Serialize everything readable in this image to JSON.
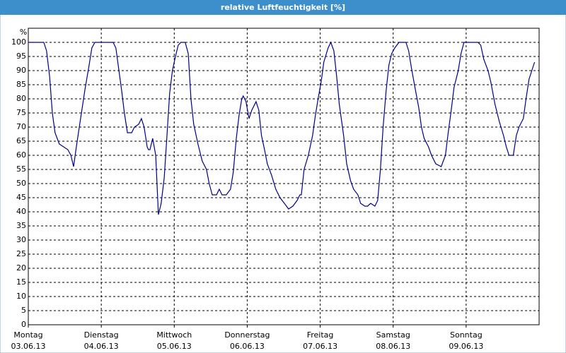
{
  "chart_data": {
    "type": "line",
    "title": "relative Luftfeuchtigkeit [%]",
    "y_unit": "%",
    "xlim": [
      0,
      168
    ],
    "ylim": [
      0,
      105
    ],
    "xticks": [
      {
        "value": 0,
        "label": "Montag"
      },
      {
        "value": 24,
        "label": "Dienstag"
      },
      {
        "value": 48,
        "label": "Mittwoch"
      },
      {
        "value": 72,
        "label": "Donnerstag"
      },
      {
        "value": 96,
        "label": "Freitag"
      },
      {
        "value": 120,
        "label": "Samstag"
      },
      {
        "value": 144,
        "label": "Sonntag"
      }
    ],
    "xtick_dates": [
      "03.06.13",
      "04.06.13",
      "05.06.13",
      "06.06.13",
      "07.06.13",
      "08.06.13",
      "09.06.13"
    ],
    "yticks": [
      0,
      5,
      10,
      15,
      20,
      25,
      30,
      35,
      40,
      45,
      50,
      55,
      60,
      65,
      70,
      75,
      80,
      85,
      90,
      95,
      100
    ],
    "grid": true,
    "series": [
      {
        "color": "#00008b",
        "x": [
          0,
          5.1,
          6.0,
          7.0,
          7.9,
          8.8,
          10.2,
          11.6,
          13.0,
          14.0,
          14.9,
          15.8,
          17.2,
          18.6,
          20.0,
          20.9,
          21.9,
          24.0,
          27.9,
          28.8,
          29.8,
          30.7,
          31.6,
          32.6,
          34.0,
          34.9,
          36.3,
          37.2,
          38.1,
          39.1,
          39.5,
          40.0,
          40.9,
          41.9,
          42.8,
          43.7,
          44.7,
          45.6,
          46.5,
          47.4,
          48.4,
          49.3,
          50.2,
          51.6,
          52.6,
          53.5,
          54.4,
          55.8,
          57.2,
          58.6,
          59.5,
          60.5,
          61.9,
          62.8,
          63.7,
          65.1,
          66.5,
          67.4,
          68.4,
          69.3,
          70.2,
          70.7,
          71.6,
          72.6,
          73.5,
          74.9,
          75.8,
          76.7,
          77.7,
          78.6,
          80.0,
          81.4,
          82.8,
          84.2,
          85.6,
          87.0,
          88.4,
          89.3,
          89.8,
          90.7,
          92.1,
          93.5,
          94.4,
          95.3,
          96.3,
          97.2,
          98.6,
          99.5,
          100.5,
          101.4,
          102.3,
          103.7,
          104.7,
          106.0,
          107.0,
          108.4,
          109.3,
          110.7,
          111.6,
          112.6,
          114.0,
          114.9,
          115.8,
          116.7,
          117.7,
          118.6,
          119.5,
          120.5,
          121.9,
          124.2,
          125.1,
          126.0,
          127.0,
          128.4,
          129.3,
          130.2,
          131.6,
          132.6,
          134.0,
          135.8,
          137.2,
          138.1,
          139.1,
          140.0,
          141.4,
          142.3,
          143.3,
          147.9,
          148.8,
          149.8,
          151.2,
          152.1,
          153.5,
          154.9,
          156.3,
          157.2,
          158.1,
          159.5,
          160.5,
          161.4,
          162.8,
          163.7,
          164.7,
          165.6,
          166.5
        ],
        "values": [
          100,
          100,
          97,
          88,
          75,
          68,
          64,
          63,
          62,
          60,
          56,
          63,
          73,
          83,
          92,
          98,
          100,
          100,
          100,
          98,
          90,
          83,
          75,
          68,
          68,
          70,
          71,
          73,
          70,
          63,
          62,
          62,
          66,
          60,
          39,
          43,
          52,
          67,
          82,
          90,
          95,
          99,
          100,
          100,
          96,
          80,
          71,
          64,
          58,
          55,
          50,
          46,
          46,
          48,
          46,
          46,
          48,
          54,
          66,
          74,
          80,
          81,
          79,
          73,
          76,
          79,
          76,
          67,
          62,
          57,
          53,
          48,
          45,
          43,
          41,
          42,
          44,
          46,
          46,
          55,
          60,
          67,
          74,
          80,
          86,
          93,
          98,
          100,
          97,
          88,
          78,
          67,
          57,
          51,
          48,
          46,
          43,
          42,
          42,
          43,
          42,
          44,
          55,
          70,
          83,
          92,
          96,
          98,
          100,
          100,
          97,
          91,
          85,
          77,
          70,
          66,
          63,
          60,
          57,
          56,
          60,
          68,
          76,
          84,
          90,
          96,
          100,
          100,
          99,
          94,
          90,
          86,
          78,
          72,
          67,
          63,
          60,
          60,
          67,
          70,
          73,
          80,
          87,
          90,
          93
        ]
      }
    ]
  }
}
